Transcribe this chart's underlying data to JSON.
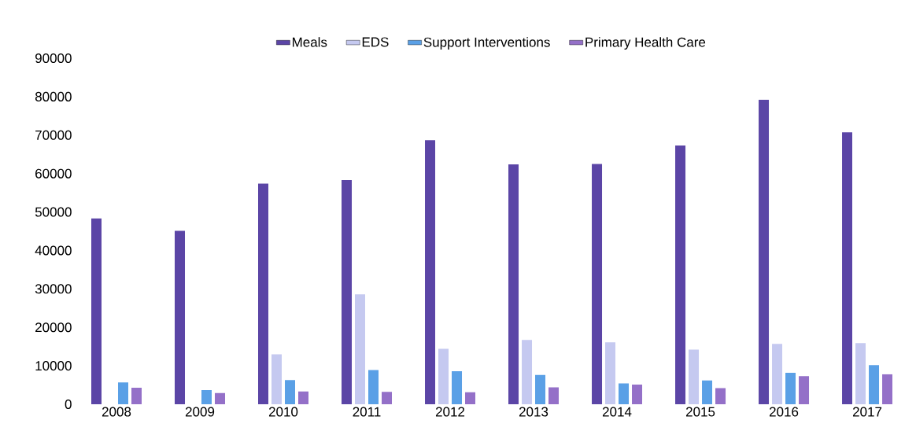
{
  "chart_data": {
    "type": "bar",
    "categories": [
      "2008",
      "2009",
      "2010",
      "2011",
      "2012",
      "2013",
      "2014",
      "2015",
      "2016",
      "2017"
    ],
    "series": [
      {
        "name": "Meals",
        "color": "#5b45a6",
        "values": [
          48300,
          45100,
          57400,
          58300,
          68700,
          62400,
          62500,
          67300,
          79200,
          70700
        ]
      },
      {
        "name": "EDS",
        "color": "#c5c9f0",
        "values": [
          0,
          0,
          13000,
          28600,
          14400,
          16700,
          16100,
          14200,
          15700,
          15900
        ]
      },
      {
        "name": "Support Interventions",
        "color": "#5aa0e6",
        "values": [
          5700,
          3700,
          6300,
          8900,
          8600,
          7600,
          5400,
          6200,
          8200,
          10200
        ]
      },
      {
        "name": "Primary Health Care",
        "color": "#9470c8",
        "values": [
          4300,
          2900,
          3300,
          3200,
          3100,
          4400,
          5100,
          4200,
          7300,
          7800
        ]
      }
    ],
    "ylim": [
      0,
      90000
    ],
    "yticks": [
      0,
      10000,
      20000,
      30000,
      40000,
      50000,
      60000,
      70000,
      80000,
      90000
    ],
    "legend": "top",
    "grid": false
  }
}
